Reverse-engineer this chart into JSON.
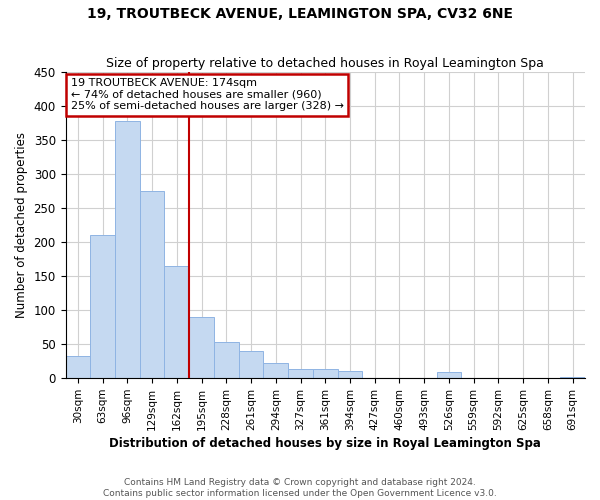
{
  "title": "19, TROUTBECK AVENUE, LEAMINGTON SPA, CV32 6NE",
  "subtitle": "Size of property relative to detached houses in Royal Leamington Spa",
  "xlabel": "Distribution of detached houses by size in Royal Leamington Spa",
  "ylabel": "Number of detached properties",
  "footer_line1": "Contains HM Land Registry data © Crown copyright and database right 2024.",
  "footer_line2": "Contains public sector information licensed under the Open Government Licence v3.0.",
  "annotation_title": "19 TROUTBECK AVENUE: 174sqm",
  "annotation_line2": "← 74% of detached houses are smaller (960)",
  "annotation_line3": "25% of semi-detached houses are larger (328) →",
  "categories": [
    "30sqm",
    "63sqm",
    "96sqm",
    "129sqm",
    "162sqm",
    "195sqm",
    "228sqm",
    "261sqm",
    "294sqm",
    "327sqm",
    "361sqm",
    "394sqm",
    "427sqm",
    "460sqm",
    "493sqm",
    "526sqm",
    "559sqm",
    "592sqm",
    "625sqm",
    "658sqm",
    "691sqm"
  ],
  "values": [
    33,
    210,
    378,
    275,
    165,
    90,
    53,
    40,
    23,
    13,
    13,
    10,
    0,
    0,
    0,
    9,
    0,
    0,
    0,
    0,
    2
  ],
  "bar_color": "#c5d9f1",
  "bar_edge_color": "#8fb4e3",
  "vline_color": "#c00000",
  "annotation_box_color": "#ffffff",
  "annotation_box_edge_color": "#c00000",
  "background_color": "#ffffff",
  "grid_color": "#d0d0d0",
  "ylim": [
    0,
    450
  ],
  "yticks": [
    0,
    50,
    100,
    150,
    200,
    250,
    300,
    350,
    400,
    450
  ],
  "vline_pos": 4.5
}
